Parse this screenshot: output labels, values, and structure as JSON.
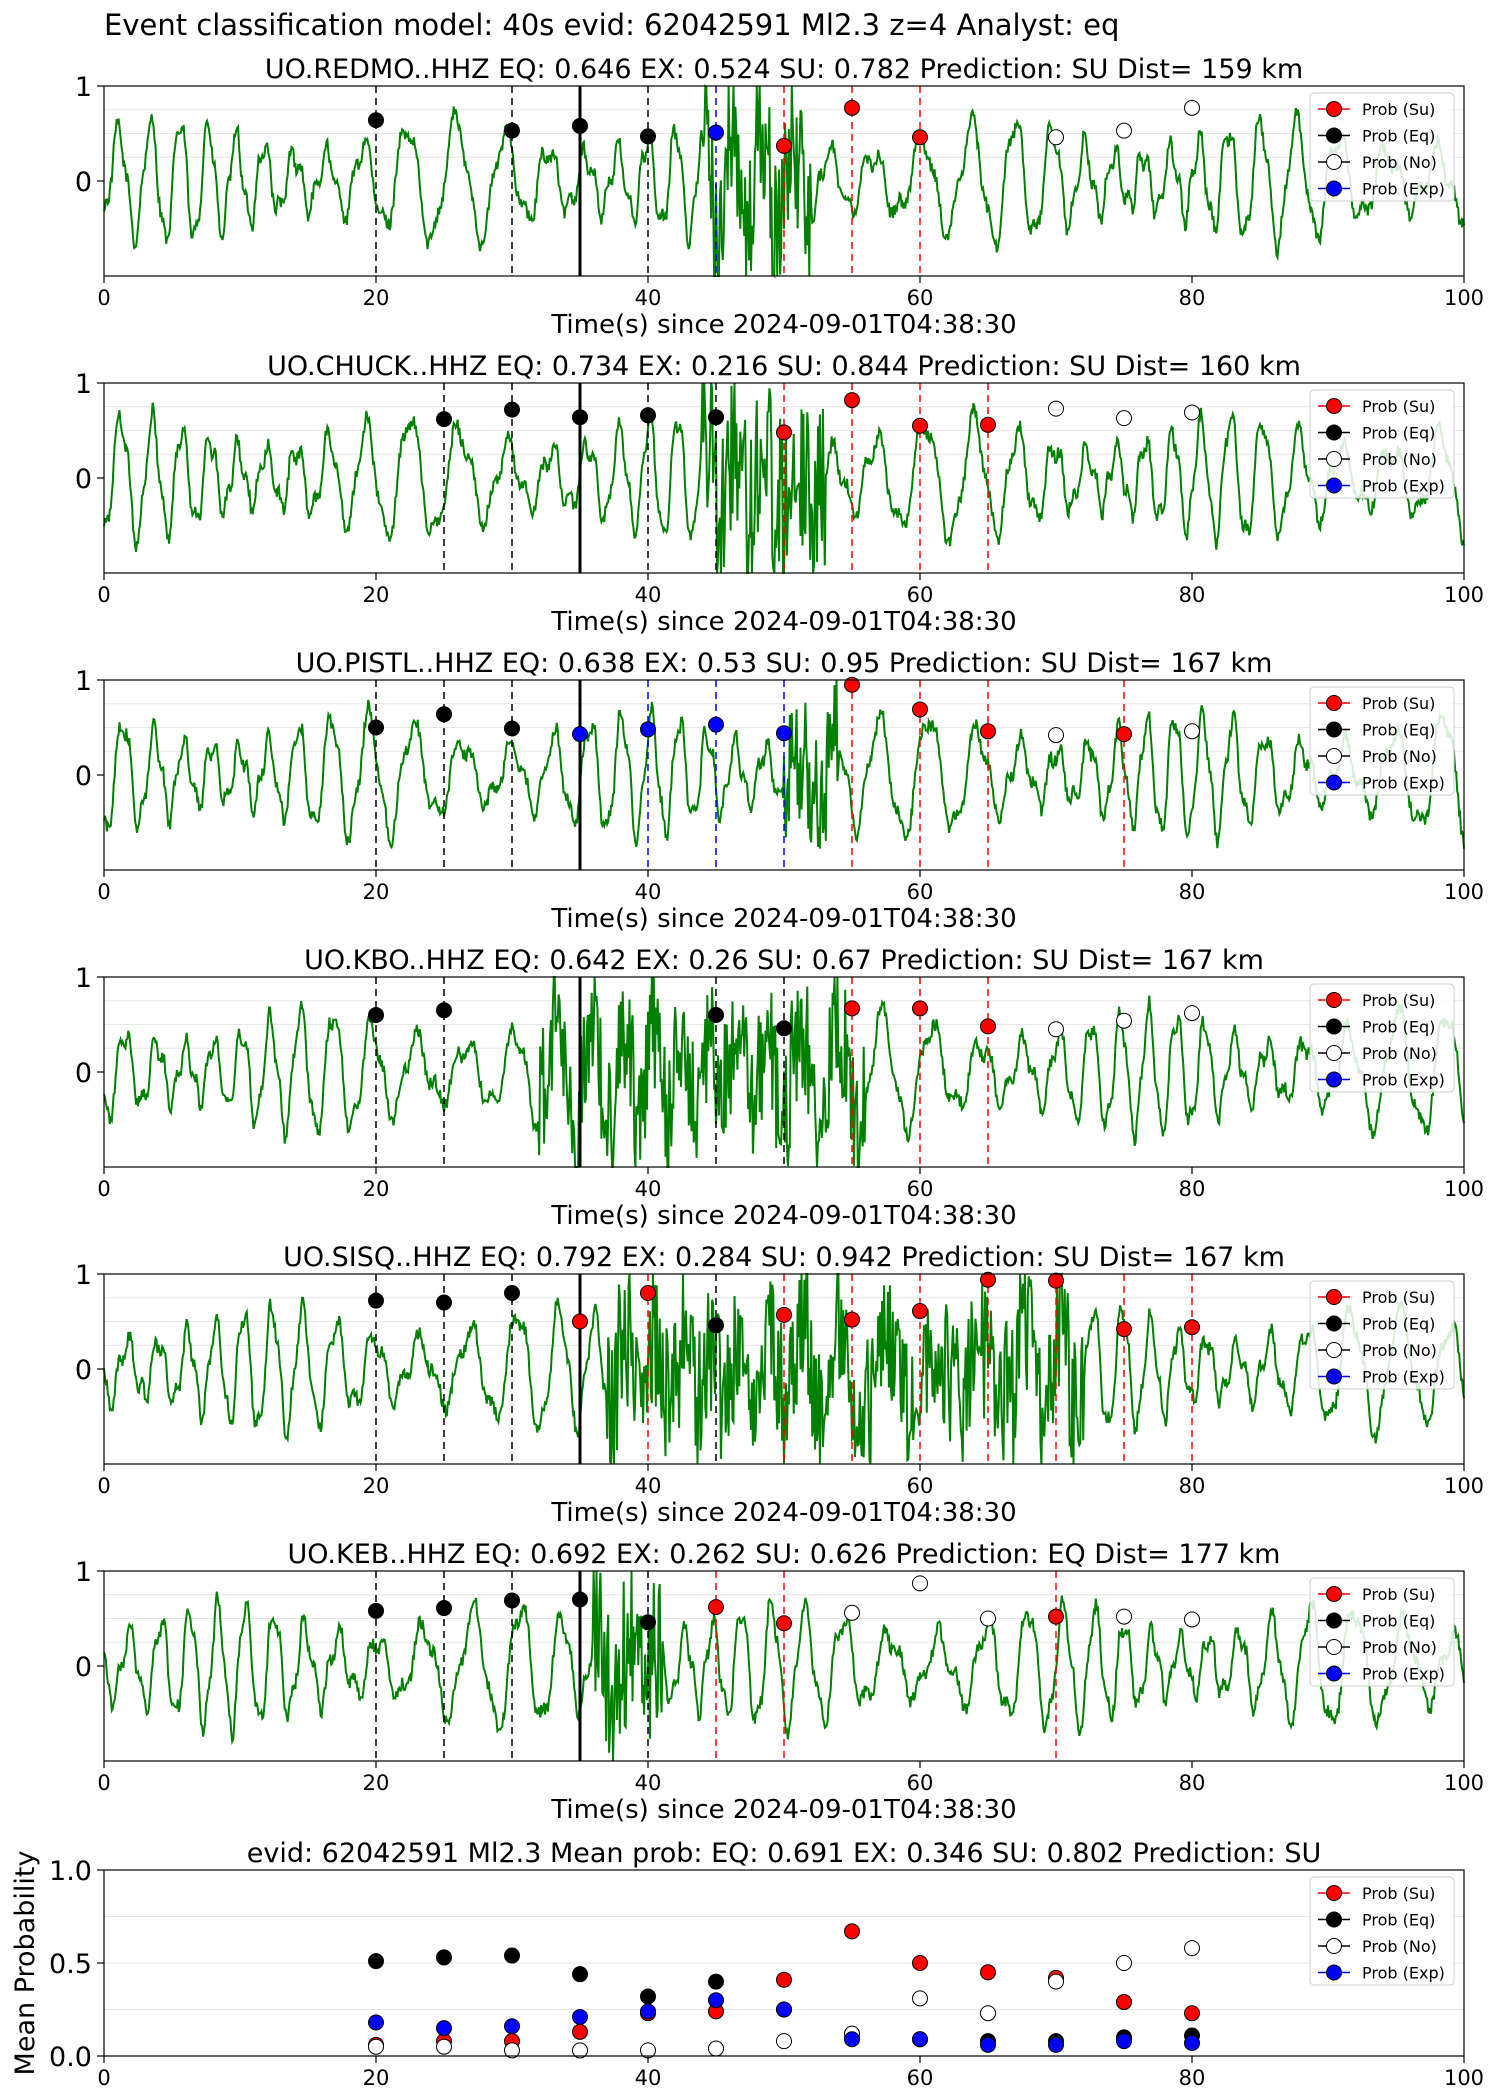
{
  "figure": {
    "suptitle": "Event classification model: 40s evid: 62042591 Ml2.3 z=4 Analyst: eq"
  },
  "legend_labels": [
    "Prob (Su)",
    "Prob (Eq)",
    "Prob (No)",
    "Prob (Exp)"
  ],
  "colors": {
    "su": "#ff0000",
    "eq": "#000000",
    "no": "#ffffff",
    "exp": "#0000ff",
    "trace": "#008000"
  },
  "chart_data": [
    {
      "type": "scatter",
      "title": "UO.REDMO..HHZ   EQ: 0.646  EX: 0.524  SU: 0.782   Prediction: SU    Dist= 159 km",
      "xlabel": "Time(s) since 2024-09-01T04:38:30",
      "xlim": [
        0,
        100
      ],
      "ylim": [
        -1,
        1
      ],
      "xticks": [
        0,
        20,
        40,
        60,
        80,
        100
      ],
      "yticks": [
        0,
        1
      ],
      "pick_time": 35,
      "windows": [
        {
          "t": 20,
          "cls": "eq",
          "p": 0.64
        },
        {
          "t": 30,
          "cls": "eq",
          "p": 0.53
        },
        {
          "t": 35,
          "cls": "eq",
          "p": 0.58
        },
        {
          "t": 40,
          "cls": "eq",
          "p": 0.47
        },
        {
          "t": 45,
          "cls": "exp",
          "p": 0.51
        },
        {
          "t": 50,
          "cls": "su",
          "p": 0.37
        },
        {
          "t": 55,
          "cls": "su",
          "p": 0.77
        },
        {
          "t": 60,
          "cls": "su",
          "p": 0.46
        },
        {
          "t": 70,
          "cls": "no",
          "p": 0.46
        },
        {
          "t": 75,
          "cls": "no",
          "p": 0.53
        },
        {
          "t": 80,
          "cls": "no",
          "p": 0.77
        }
      ]
    },
    {
      "type": "scatter",
      "title": "UO.CHUCK..HHZ   EQ: 0.734  EX: 0.216  SU: 0.844   Prediction: SU    Dist= 160 km",
      "xlabel": "Time(s) since 2024-09-01T04:38:30",
      "xlim": [
        0,
        100
      ],
      "ylim": [
        -1,
        1
      ],
      "xticks": [
        0,
        20,
        40,
        60,
        80,
        100
      ],
      "yticks": [
        0,
        1
      ],
      "pick_time": 35,
      "windows": [
        {
          "t": 25,
          "cls": "eq",
          "p": 0.62
        },
        {
          "t": 30,
          "cls": "eq",
          "p": 0.72
        },
        {
          "t": 35,
          "cls": "eq",
          "p": 0.64
        },
        {
          "t": 40,
          "cls": "eq",
          "p": 0.66
        },
        {
          "t": 45,
          "cls": "eq",
          "p": 0.64
        },
        {
          "t": 50,
          "cls": "su",
          "p": 0.48
        },
        {
          "t": 55,
          "cls": "su",
          "p": 0.82
        },
        {
          "t": 60,
          "cls": "su",
          "p": 0.55
        },
        {
          "t": 65,
          "cls": "su",
          "p": 0.56
        },
        {
          "t": 70,
          "cls": "no",
          "p": 0.73
        },
        {
          "t": 75,
          "cls": "no",
          "p": 0.63
        },
        {
          "t": 80,
          "cls": "no",
          "p": 0.69
        }
      ]
    },
    {
      "type": "scatter",
      "title": "UO.PISTL..HHZ   EQ: 0.638  EX: 0.53  SU: 0.95   Prediction: SU    Dist= 167 km",
      "xlabel": "Time(s) since 2024-09-01T04:38:30",
      "xlim": [
        0,
        100
      ],
      "ylim": [
        -1,
        1
      ],
      "xticks": [
        0,
        20,
        40,
        60,
        80,
        100
      ],
      "yticks": [
        0,
        1
      ],
      "pick_time": 35,
      "windows": [
        {
          "t": 20,
          "cls": "eq",
          "p": 0.5
        },
        {
          "t": 25,
          "cls": "eq",
          "p": 0.64
        },
        {
          "t": 30,
          "cls": "eq",
          "p": 0.49
        },
        {
          "t": 35,
          "cls": "exp",
          "p": 0.43
        },
        {
          "t": 40,
          "cls": "exp",
          "p": 0.48
        },
        {
          "t": 45,
          "cls": "exp",
          "p": 0.53
        },
        {
          "t": 50,
          "cls": "exp",
          "p": 0.44
        },
        {
          "t": 55,
          "cls": "su",
          "p": 0.95
        },
        {
          "t": 60,
          "cls": "su",
          "p": 0.69
        },
        {
          "t": 65,
          "cls": "su",
          "p": 0.46
        },
        {
          "t": 70,
          "cls": "no",
          "p": 0.42
        },
        {
          "t": 75,
          "cls": "su",
          "p": 0.43
        },
        {
          "t": 80,
          "cls": "no",
          "p": 0.46
        }
      ]
    },
    {
      "type": "scatter",
      "title": "UO.KBO..HHZ   EQ: 0.642  EX: 0.26  SU: 0.67   Prediction: SU    Dist= 167 km",
      "xlabel": "Time(s) since 2024-09-01T04:38:30",
      "xlim": [
        0,
        100
      ],
      "ylim": [
        -1,
        1
      ],
      "xticks": [
        0,
        20,
        40,
        60,
        80,
        100
      ],
      "yticks": [
        0,
        1
      ],
      "pick_time": 35,
      "windows": [
        {
          "t": 20,
          "cls": "eq",
          "p": 0.6
        },
        {
          "t": 25,
          "cls": "eq",
          "p": 0.65
        },
        {
          "t": 45,
          "cls": "eq",
          "p": 0.6
        },
        {
          "t": 50,
          "cls": "eq",
          "p": 0.46
        },
        {
          "t": 55,
          "cls": "su",
          "p": 0.67
        },
        {
          "t": 60,
          "cls": "su",
          "p": 0.67
        },
        {
          "t": 65,
          "cls": "su",
          "p": 0.48
        },
        {
          "t": 70,
          "cls": "no",
          "p": 0.45
        },
        {
          "t": 75,
          "cls": "no",
          "p": 0.54
        },
        {
          "t": 80,
          "cls": "no",
          "p": 0.62
        }
      ]
    },
    {
      "type": "scatter",
      "title": "UO.SISQ..HHZ   EQ: 0.792  EX: 0.284  SU: 0.942   Prediction: SU    Dist= 167 km",
      "xlabel": "Time(s) since 2024-09-01T04:38:30",
      "xlim": [
        0,
        100
      ],
      "ylim": [
        -1,
        1
      ],
      "xticks": [
        0,
        20,
        40,
        60,
        80,
        100
      ],
      "yticks": [
        0,
        1
      ],
      "pick_time": 35,
      "windows": [
        {
          "t": 20,
          "cls": "eq",
          "p": 0.72
        },
        {
          "t": 25,
          "cls": "eq",
          "p": 0.7
        },
        {
          "t": 30,
          "cls": "eq",
          "p": 0.8
        },
        {
          "t": 35,
          "cls": "su",
          "p": 0.5
        },
        {
          "t": 40,
          "cls": "su",
          "p": 0.8
        },
        {
          "t": 45,
          "cls": "eq",
          "p": 0.46
        },
        {
          "t": 50,
          "cls": "su",
          "p": 0.57
        },
        {
          "t": 55,
          "cls": "su",
          "p": 0.52
        },
        {
          "t": 60,
          "cls": "su",
          "p": 0.61
        },
        {
          "t": 65,
          "cls": "su",
          "p": 0.94
        },
        {
          "t": 70,
          "cls": "su",
          "p": 0.93
        },
        {
          "t": 75,
          "cls": "su",
          "p": 0.42
        },
        {
          "t": 80,
          "cls": "su",
          "p": 0.44
        }
      ]
    },
    {
      "type": "scatter",
      "title": "UO.KEB..HHZ   EQ: 0.692  EX: 0.262  SU: 0.626   Prediction: EQ    Dist= 177 km",
      "xlabel": "Time(s) since 2024-09-01T04:38:30",
      "xlim": [
        0,
        100
      ],
      "ylim": [
        -1,
        1
      ],
      "xticks": [
        0,
        20,
        40,
        60,
        80,
        100
      ],
      "yticks": [
        0,
        1
      ],
      "pick_time": 35,
      "windows": [
        {
          "t": 20,
          "cls": "eq",
          "p": 0.58
        },
        {
          "t": 25,
          "cls": "eq",
          "p": 0.61
        },
        {
          "t": 30,
          "cls": "eq",
          "p": 0.69
        },
        {
          "t": 35,
          "cls": "eq",
          "p": 0.7
        },
        {
          "t": 40,
          "cls": "eq",
          "p": 0.46
        },
        {
          "t": 45,
          "cls": "su",
          "p": 0.62
        },
        {
          "t": 50,
          "cls": "su",
          "p": 0.45
        },
        {
          "t": 55,
          "cls": "no",
          "p": 0.56
        },
        {
          "t": 60,
          "cls": "no",
          "p": 0.87
        },
        {
          "t": 65,
          "cls": "no",
          "p": 0.5
        },
        {
          "t": 70,
          "cls": "su",
          "p": 0.52
        },
        {
          "t": 75,
          "cls": "no",
          "p": 0.52
        },
        {
          "t": 80,
          "cls": "no",
          "p": 0.49
        }
      ]
    },
    {
      "type": "scatter",
      "title": "evid: 62042591  Ml2.3   Mean prob:   EQ: 0.691  EX: 0.346  SU: 0.802   Prediction: SU",
      "xlabel": "",
      "ylabel": "Mean Probability",
      "xlim": [
        0,
        100
      ],
      "ylim": [
        0,
        1
      ],
      "xticks": [
        0,
        20,
        40,
        60,
        80,
        100
      ],
      "yticks": [
        0.0,
        0.5,
        1.0
      ],
      "x": [
        20,
        25,
        30,
        35,
        40,
        45,
        50,
        55,
        60,
        65,
        70,
        75,
        80
      ],
      "series": [
        {
          "name": "Prob (Su)",
          "cls": "su",
          "values": [
            0.06,
            0.08,
            0.08,
            0.13,
            0.23,
            0.24,
            0.41,
            0.67,
            0.5,
            0.45,
            0.42,
            0.29,
            0.23
          ]
        },
        {
          "name": "Prob (Eq)",
          "cls": "eq",
          "values": [
            0.51,
            0.53,
            0.54,
            0.44,
            0.32,
            0.4,
            0.25,
            0.1,
            0.09,
            0.08,
            0.08,
            0.1,
            0.11
          ]
        },
        {
          "name": "Prob (No)",
          "cls": "no",
          "values": [
            0.05,
            0.05,
            0.03,
            0.03,
            0.03,
            0.04,
            0.08,
            0.12,
            0.31,
            0.23,
            0.4,
            0.5,
            0.58
          ]
        },
        {
          "name": "Prob (Exp)",
          "cls": "exp",
          "values": [
            0.18,
            0.15,
            0.16,
            0.21,
            0.24,
            0.3,
            0.25,
            0.09,
            0.09,
            0.06,
            0.06,
            0.08,
            0.07
          ]
        }
      ]
    }
  ]
}
